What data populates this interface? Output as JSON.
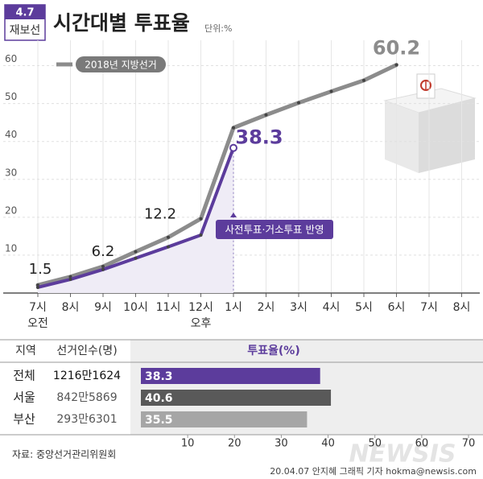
{
  "badge": [
    "4.7",
    "재보선"
  ],
  "chart_data": [
    {
      "type": "line",
      "title": "시간대별 투표율",
      "subtitle": "단위:%",
      "categories": [
        "7시",
        "8시",
        "9시",
        "10시",
        "11시",
        "12시",
        "1시",
        "2시",
        "3시",
        "4시",
        "5시",
        "6시",
        "7시",
        "8시"
      ],
      "category_sublabels": [
        "오전",
        null,
        null,
        null,
        null,
        "오후",
        null,
        null,
        null,
        null,
        null,
        null,
        null,
        null
      ],
      "ylim": [
        0,
        65
      ],
      "yticks": [
        10,
        20,
        30,
        40,
        50,
        60
      ],
      "grid": true,
      "series": [
        {
          "name": "2018년 지방선거",
          "color": "#8c8c8c",
          "values": [
            2.1,
            4.3,
            7.0,
            10.9,
            14.7,
            19.6,
            43.6,
            47.0,
            50.2,
            53.2,
            56.1,
            60.2,
            null,
            null
          ]
        },
        {
          "color": "#5c3c9c",
          "values": [
            1.5,
            3.6,
            6.2,
            9.2,
            12.2,
            15.3,
            38.3,
            null,
            null,
            null,
            null,
            null,
            null,
            null
          ]
        }
      ],
      "annotation": "사전투표·거소투표 반영"
    },
    {
      "type": "bar",
      "orientation": "horizontal",
      "columns": [
        "지역",
        "선거인수(명)",
        "투표율(%)"
      ],
      "categories": [
        "전체",
        "서울",
        "부산"
      ],
      "electorate": [
        "1216만1624",
        "842만5869",
        "293만6301"
      ],
      "values": [
        38.3,
        40.6,
        35.5
      ],
      "colors": [
        "#5c3c9c",
        "#595959",
        "#a6a6a6"
      ],
      "xlim": [
        0,
        70
      ],
      "xticks": [
        10,
        20,
        30,
        40,
        50,
        60,
        70
      ]
    }
  ],
  "source": "자료: 중앙선거관리위원회",
  "credit": "20.04.07 안지혜 그래픽 기자 hokma@newsis.com",
  "watermark": "NEWSIS"
}
